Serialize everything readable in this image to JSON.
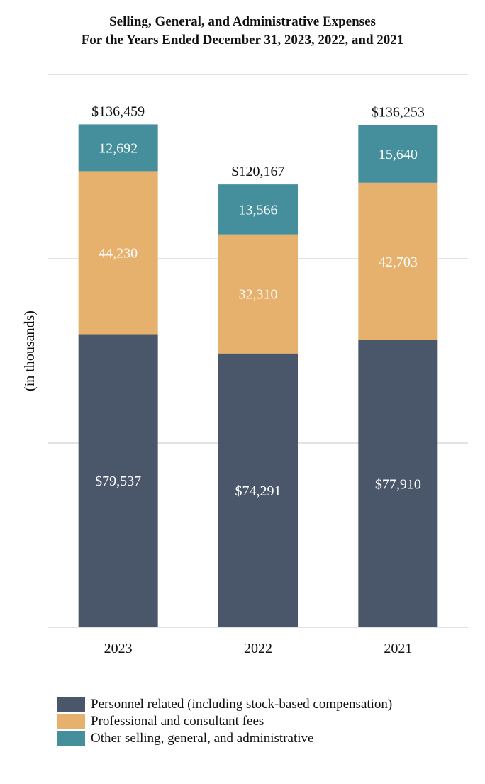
{
  "chart_data": {
    "type": "bar",
    "stacked": true,
    "title": [
      "Selling, General, and Administrative Expenses",
      "For the Years Ended December 31, 2023, 2022, and 2021"
    ],
    "ylabel": "(in thousands)",
    "xlabel": "",
    "ylim": [
      0,
      150000
    ],
    "grid": true,
    "categories": [
      "2023",
      "2022",
      "2021"
    ],
    "series": [
      {
        "name": "Personnel related (including stock-based compensation)",
        "color": "#4a576a",
        "values": [
          79537,
          74291,
          77910
        ],
        "labels": [
          "$79,537",
          "$74,291",
          "$77,910"
        ]
      },
      {
        "name": "Professional and consultant fees",
        "color": "#e6b06d",
        "values": [
          44230,
          32310,
          42703
        ],
        "labels": [
          "44,230",
          "32,310",
          "42,703"
        ]
      },
      {
        "name": "Other selling, general, and administrative",
        "color": "#458f9c",
        "values": [
          12692,
          13566,
          15640
        ],
        "labels": [
          "12,692",
          "13,566",
          "15,640"
        ]
      }
    ],
    "totals": [
      "$136,459",
      "$120,167",
      "$136,253"
    ],
    "legend_position": "bottom-left"
  }
}
